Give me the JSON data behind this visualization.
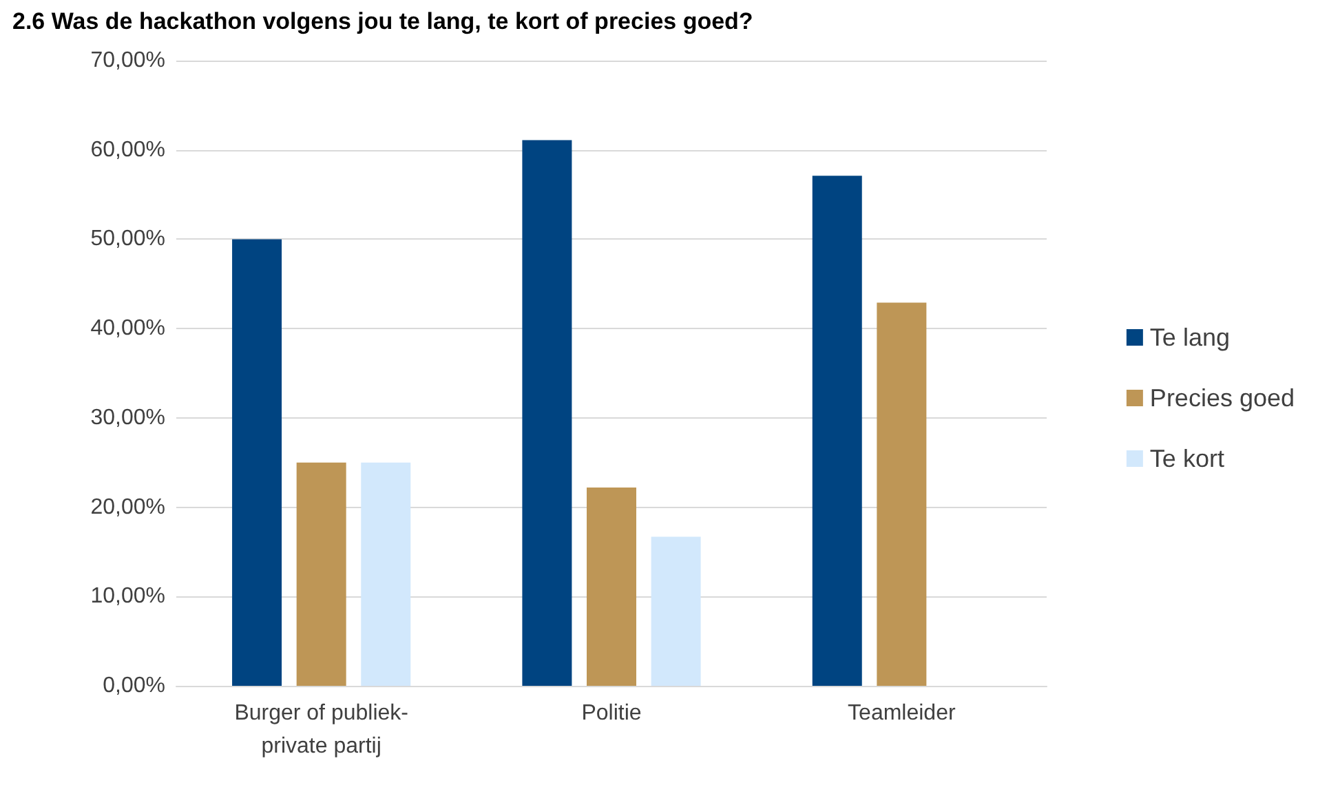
{
  "chart_data": {
    "type": "bar",
    "title": "2.6 Was de hackathon volgens jou te lang, te kort of precies goed?",
    "categories": [
      "Burger of publiek-\nprivate partij",
      "Politie",
      "Teamleider"
    ],
    "series": [
      {
        "name": "Te lang",
        "color": "#004481",
        "values": [
          50,
          61.1,
          57.1
        ]
      },
      {
        "name": "Precies goed",
        "color": "#be9656",
        "values": [
          25,
          22.2,
          42.9
        ]
      },
      {
        "name": "Te kort",
        "color": "#d2e8fc",
        "values": [
          25,
          16.7,
          0
        ]
      }
    ],
    "ylim": [
      0,
      70
    ],
    "yticks": [
      {
        "value": 0,
        "label": "0,00%"
      },
      {
        "value": 10,
        "label": "10,00%"
      },
      {
        "value": 20,
        "label": "20,00%"
      },
      {
        "value": 30,
        "label": "30,00%"
      },
      {
        "value": 40,
        "label": "40,00%"
      },
      {
        "value": 50,
        "label": "50,00%"
      },
      {
        "value": 60,
        "label": "60,00%"
      },
      {
        "value": 70,
        "label": "70,00%"
      }
    ],
    "grid": "y",
    "legend": "right"
  }
}
